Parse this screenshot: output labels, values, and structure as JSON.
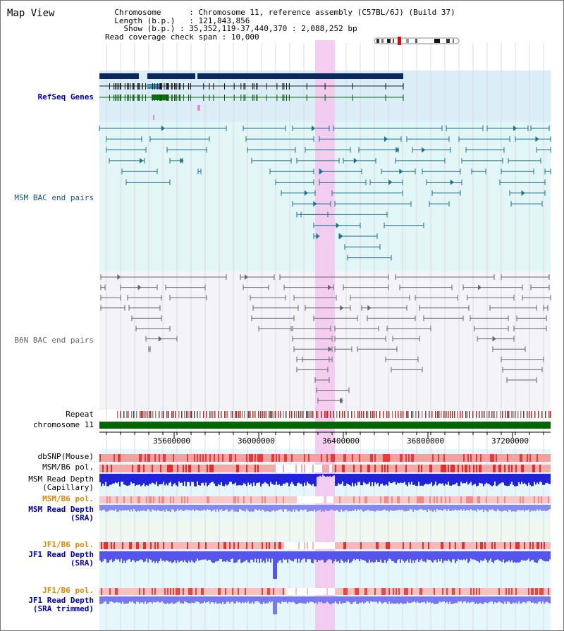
{
  "page": {
    "title": "Map View"
  },
  "info": {
    "chromosome_label": "Chromosome",
    "chromosome_value": "Chromosome 11, reference assembly (C57BL/6J) (Build 37)",
    "length_label": "Length (b.p.)",
    "length_value": "121,843,856",
    "show_label": "Show (b.p.)",
    "show_value": "35,352,119-37,440,370 : 2,088,252 bp",
    "coverage_label": "Read coverage check span",
    "coverage_value": "10,000"
  },
  "tracks": {
    "refseq": "RefSeq Genes",
    "msm_bac": "MSM BAC end pairs",
    "b6n_bac": "B6N BAC end pairs",
    "repeat": "Repeat",
    "chromosome": "chromosome 11",
    "dbsnp": "dbSNP(Mouse)",
    "msm_pol": "MSM/B6 pol.",
    "msm_depth_cap_1": "MSM Read Depth",
    "msm_depth_cap_2": "(Capillary)",
    "msm_pol_sra": "MSM/B6 pol.",
    "msm_depth_sra_1": "MSM Read Depth",
    "msm_depth_sra_2": "(SRA)",
    "jf1_pol": "JF1/B6 pol.",
    "jf1_depth_sra_1": "JF1 Read Depth",
    "jf1_depth_sra_2": "(SRA)",
    "jf1_pol_trim": "JF1/B6 pol.",
    "jf1_depth_trim_1": "JF1 Read Depth",
    "jf1_depth_trim_2": "(SRA trimmed)"
  },
  "axis": {
    "ticks": [
      "35600000",
      "36000000",
      "36400000",
      "36800000",
      "37200000"
    ]
  },
  "colors": {
    "highlight": "#f5c6ee",
    "refseq_bg": "#dbeef8",
    "msm_bg": "#e3f6f6",
    "b6n_bg": "#f3f3f8",
    "gene_dark": "#0a2a5e",
    "msm_line": "#1a6e8e",
    "b6n_line": "#666666",
    "chromosome": "#006600",
    "depth_blue": "#2222dd",
    "depth_light": "#8888ee"
  }
}
